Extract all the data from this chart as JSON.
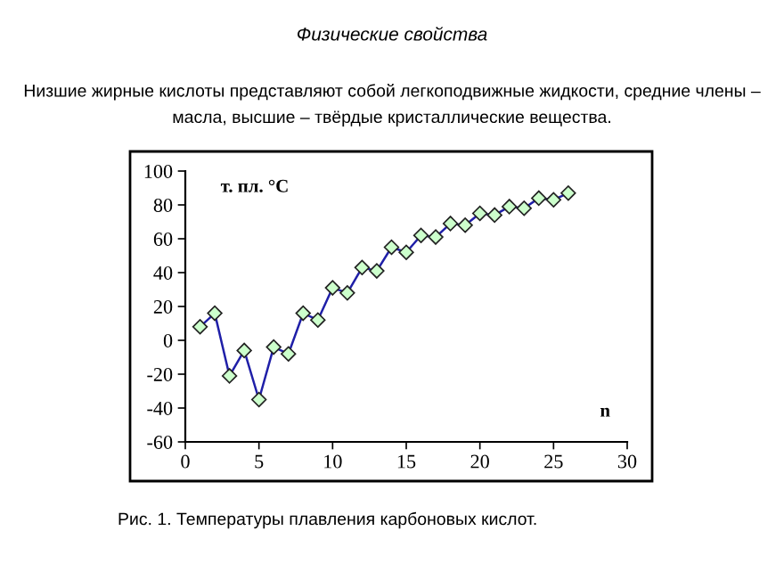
{
  "chart_data": {
    "type": "line",
    "title": "Физические свойства",
    "subtitle": "Низшие жирные кислоты представляют собой легкоподвижные жидкости, средние члены – масла, высшие – твёрдые кристаллические вещества.",
    "xlabel": "n",
    "ylabel": "т. пл. °C",
    "annotations": [
      "Рис. 1. Температуры плавления карбоновых кислот."
    ],
    "x": [
      1,
      2,
      3,
      4,
      5,
      6,
      7,
      8,
      9,
      10,
      11,
      12,
      13,
      14,
      15,
      16,
      17,
      18,
      19,
      20,
      21,
      22,
      23,
      24,
      25,
      26
    ],
    "series": [
      {
        "color": "#1f1fa8",
        "values": [
          8,
          16,
          -21,
          -6,
          -35,
          -4,
          -8,
          16,
          12,
          31,
          28,
          43,
          41,
          55,
          52,
          62,
          61,
          69,
          68,
          75,
          74,
          79,
          78,
          84,
          83,
          87
        ]
      }
    ],
    "marker": "diamond",
    "line_style": "solid",
    "grid": false,
    "legend": false,
    "xlim": [
      0,
      30
    ],
    "xticks": [
      0,
      5,
      10,
      15,
      20,
      25,
      30
    ],
    "ylim": [
      -60,
      100
    ],
    "yticks": [
      -60,
      -40,
      -20,
      0,
      20,
      40,
      60,
      80,
      100
    ]
  }
}
